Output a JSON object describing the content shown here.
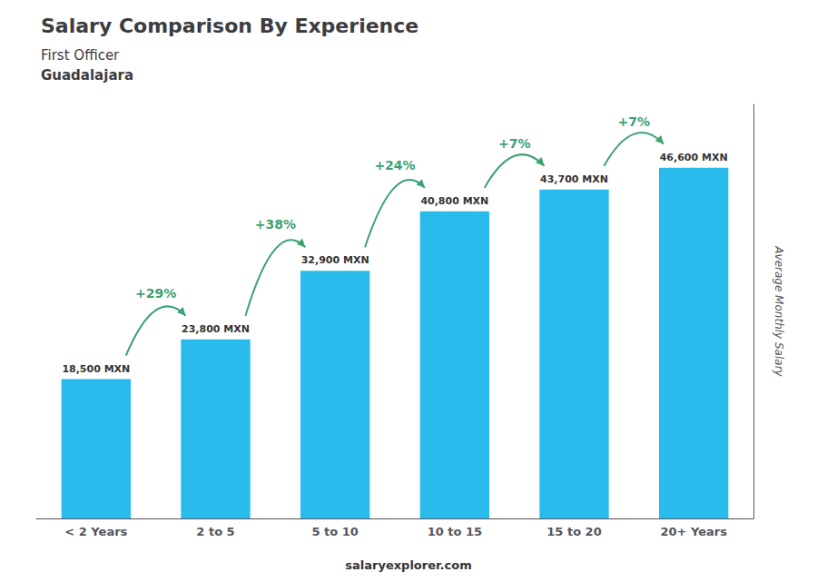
{
  "chart_data": {
    "type": "bar",
    "title": "Salary Comparison By Experience",
    "subtitle": [
      "First Officer",
      "Guadalajara"
    ],
    "categories": [
      "< 2 Years",
      "2 to 5",
      "5 to 10",
      "10 to 15",
      "15 to 20",
      "20+ Years"
    ],
    "values": [
      18500,
      23800,
      32900,
      40800,
      43700,
      46600
    ],
    "value_labels": [
      "18,500 MXN",
      "23,800 MXN",
      "32,900 MXN",
      "40,800 MXN",
      "43,700 MXN",
      "46,600 MXN"
    ],
    "data_labels": true,
    "color": "#29BBEC",
    "ylabel": "Average Monthly Salary",
    "ylim": [
      0,
      55000
    ],
    "grid": false,
    "tick_labels": "x",
    "annotations": [
      "+29%",
      "+38%",
      "+24%",
      "+7%",
      "+7%"
    ],
    "footer": "salaryexplorer.com"
  }
}
